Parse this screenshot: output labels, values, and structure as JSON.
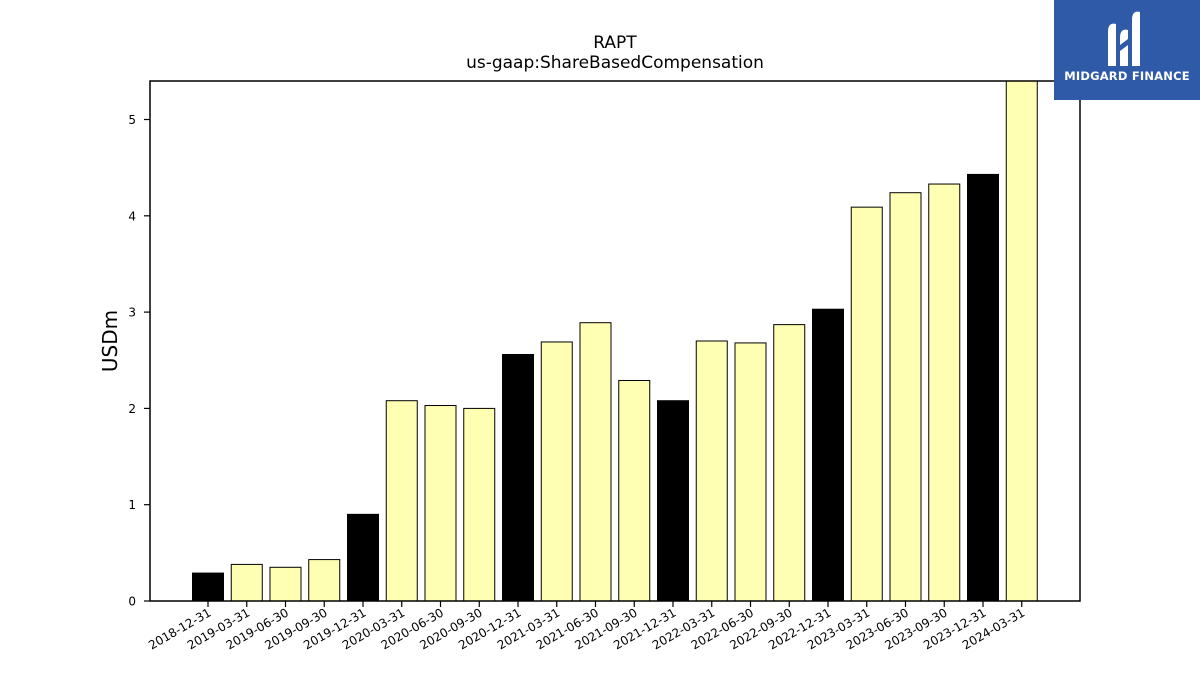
{
  "chart_data": {
    "type": "bar",
    "title": "RAPT",
    "subtitle": "us-gaap:ShareBasedCompensation",
    "ylabel": "USDm",
    "xlabel": "",
    "ylim": [
      0,
      5.4
    ],
    "yticks": [
      0,
      1,
      2,
      3,
      4,
      5
    ],
    "grid": false,
    "legend": "none",
    "categories": [
      "2018-12-31",
      "2019-03-31",
      "2019-06-30",
      "2019-09-30",
      "2019-12-31",
      "2020-03-31",
      "2020-06-30",
      "2020-09-30",
      "2020-12-31",
      "2021-03-31",
      "2021-06-30",
      "2021-09-30",
      "2021-12-31",
      "2022-03-31",
      "2022-06-30",
      "2022-09-30",
      "2022-12-31",
      "2023-03-31",
      "2023-06-30",
      "2023-09-30",
      "2023-12-31",
      "2024-03-31"
    ],
    "values": [
      0.29,
      0.38,
      0.35,
      0.43,
      0.9,
      2.08,
      2.03,
      2.0,
      2.56,
      2.69,
      2.89,
      2.29,
      2.08,
      2.7,
      2.68,
      2.87,
      3.03,
      4.09,
      4.24,
      4.33,
      4.43,
      5.4
    ],
    "colors": {
      "quarter_end_of_year": "#000000",
      "quarter": "#ffffb3",
      "edge": "#000000"
    },
    "bar_color_keys": [
      "quarter_end_of_year",
      "quarter",
      "quarter",
      "quarter",
      "quarter_end_of_year",
      "quarter",
      "quarter",
      "quarter",
      "quarter_end_of_year",
      "quarter",
      "quarter",
      "quarter",
      "quarter_end_of_year",
      "quarter",
      "quarter",
      "quarter",
      "quarter_end_of_year",
      "quarter",
      "quarter",
      "quarter",
      "quarter_end_of_year",
      "quarter"
    ]
  },
  "logo": {
    "text": "MIDGARD FINANCE",
    "background": "#2f5aa8"
  }
}
